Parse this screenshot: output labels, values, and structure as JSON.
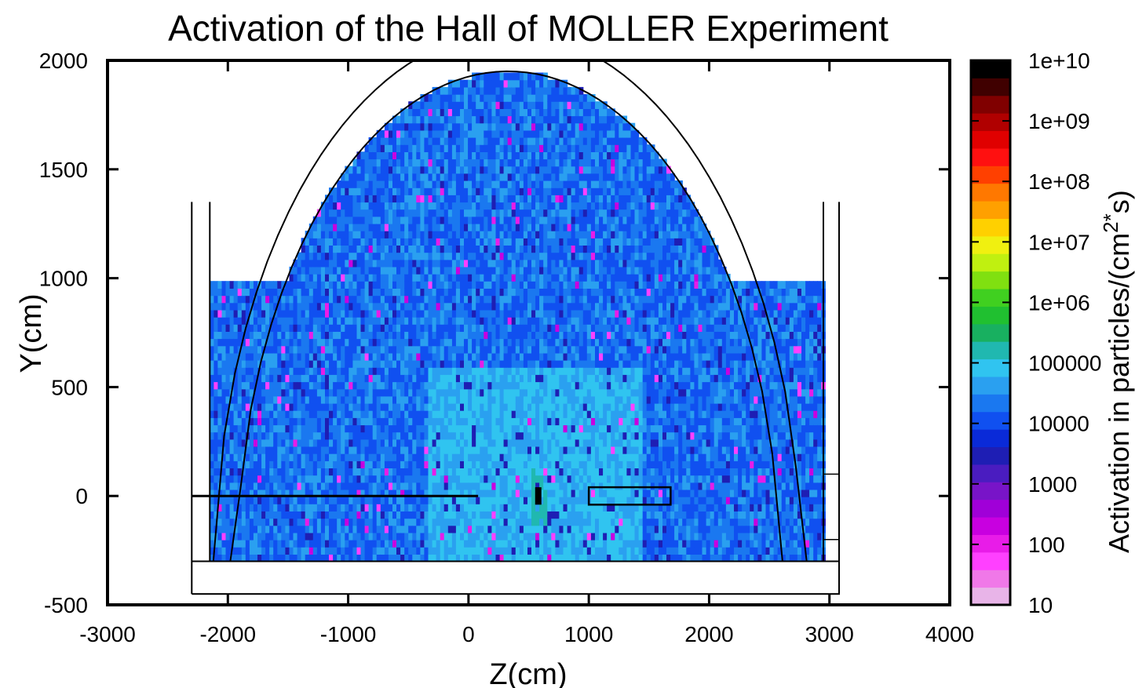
{
  "chart_data": {
    "type": "heatmap",
    "title": "Activation of the Hall of MOLLER Experiment",
    "xlabel": "Z(cm)",
    "ylabel": "Y(cm)",
    "xlim": [
      -3000,
      4000
    ],
    "ylim": [
      -500,
      2000
    ],
    "xticks": [
      "-3000",
      "-2000",
      "-1000",
      "0",
      "1000",
      "2000",
      "3000",
      "4000"
    ],
    "yticks": [
      "-500",
      "0",
      "500",
      "1000",
      "1500",
      "2000"
    ],
    "colorbar": {
      "label_main": "Activation in particles/(cm",
      "label_sup1": "2",
      "label_sup2": "*",
      "label_tail": "s)",
      "scale": "log",
      "range": [
        10,
        10000000000
      ],
      "ticks": [
        "1e+10",
        "1e+09",
        "1e+08",
        "1e+07",
        "1e+06",
        "100000",
        "10000",
        "1000",
        "100",
        "10"
      ],
      "colors": [
        "#e8b4e8",
        "#f078e8",
        "#ff40ff",
        "#e81ce8",
        "#c800e0",
        "#a000d8",
        "#7814c8",
        "#4a1cc0",
        "#1e1eb4",
        "#0a2ad8",
        "#1050f0",
        "#1a78f0",
        "#2aa0f0",
        "#30c4f0",
        "#20b8b0",
        "#18b060",
        "#20c030",
        "#40d020",
        "#80e010",
        "#c0f010",
        "#f0f010",
        "#ffd000",
        "#ffa000",
        "#ff7800",
        "#ff4000",
        "#ff1010",
        "#e00000",
        "#b00000",
        "#800000",
        "#400000",
        "#000000"
      ]
    },
    "annotations": {
      "hall_outline": "black",
      "data_extent_z": [
        -2150,
        2950
      ],
      "data_extent_y": [
        -300,
        1950
      ],
      "beamline_y": 0,
      "target_z": 580,
      "detector_box_z": [
        1000,
        1680
      ]
    }
  }
}
